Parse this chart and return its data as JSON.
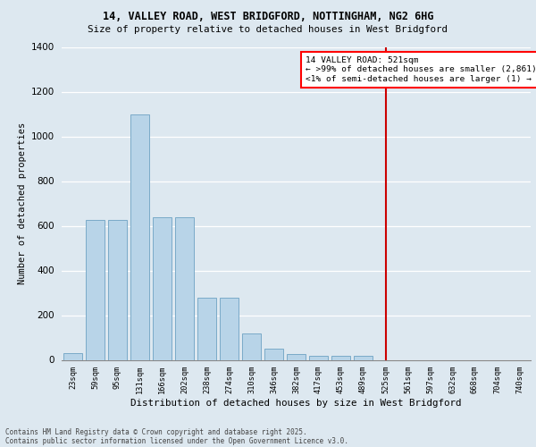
{
  "title_line1": "14, VALLEY ROAD, WEST BRIDGFORD, NOTTINGHAM, NG2 6HG",
  "title_line2": "Size of property relative to detached houses in West Bridgford",
  "xlabel": "Distribution of detached houses by size in West Bridgford",
  "ylabel": "Number of detached properties",
  "categories": [
    "23sqm",
    "59sqm",
    "95sqm",
    "131sqm",
    "166sqm",
    "202sqm",
    "238sqm",
    "274sqm",
    "310sqm",
    "346sqm",
    "382sqm",
    "417sqm",
    "453sqm",
    "489sqm",
    "525sqm",
    "561sqm",
    "597sqm",
    "632sqm",
    "668sqm",
    "704sqm",
    "740sqm"
  ],
  "bar_values": [
    30,
    625,
    625,
    1100,
    640,
    640,
    280,
    280,
    120,
    50,
    25,
    20,
    20,
    20,
    0,
    0,
    0,
    0,
    0,
    0,
    0
  ],
  "bar_color": "#b8d4e8",
  "bar_edge_color": "#7aaac8",
  "vline_idx": 14,
  "vline_color": "#cc0000",
  "annotation_title": "14 VALLEY ROAD: 521sqm",
  "annotation_line2": "← >99% of detached houses are smaller (2,861)",
  "annotation_line3": "<1% of semi-detached houses are larger (1) →",
  "background_color": "#dde8f0",
  "grid_color": "white",
  "footer_line1": "Contains HM Land Registry data © Crown copyright and database right 2025.",
  "footer_line2": "Contains public sector information licensed under the Open Government Licence v3.0.",
  "ylim": [
    0,
    1400
  ],
  "yticks": [
    0,
    200,
    400,
    600,
    800,
    1000,
    1200,
    1400
  ]
}
